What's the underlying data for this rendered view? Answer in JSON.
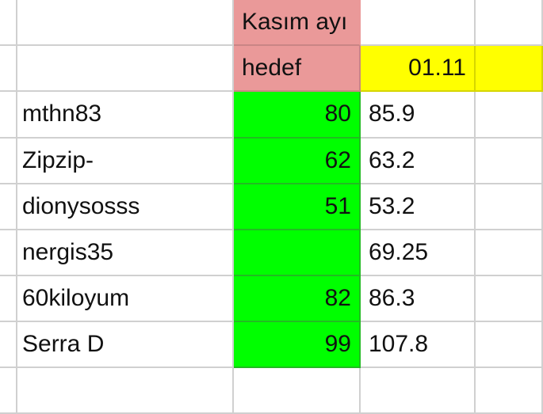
{
  "header": {
    "month_label": "Kasım ayı",
    "target_label": "hedef",
    "date_label": "01.11"
  },
  "rows": [
    {
      "name": "mthn83",
      "target": "80",
      "value": "85.9"
    },
    {
      "name": "Zipzip-",
      "target": "62",
      "value": "63.2"
    },
    {
      "name": "dionysosss",
      "target": "51",
      "value": "53.2"
    },
    {
      "name": "nergis35",
      "target": "",
      "value": "69.25"
    },
    {
      "name": "60kiloyum",
      "target": "82",
      "value": "86.3"
    },
    {
      "name": "Serra D",
      "target": "99",
      "value": "107.8"
    }
  ],
  "colors": {
    "header_pink": "#ea9999",
    "date_yellow": "#ffff00",
    "target_green": "#00ff00"
  }
}
